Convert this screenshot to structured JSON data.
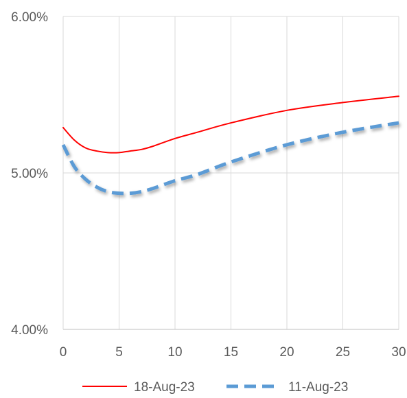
{
  "chart_data": {
    "type": "line",
    "title": "",
    "xlabel": "",
    "ylabel": "",
    "xlim": [
      0,
      30
    ],
    "ylim": [
      4.0,
      6.0
    ],
    "x_ticks": [
      "0",
      "5",
      "10",
      "15",
      "20",
      "25",
      "30"
    ],
    "y_ticks": [
      "4.00%",
      "5.00%",
      "6.00%"
    ],
    "grid": "vertical",
    "legend_position": "bottom",
    "series": [
      {
        "name": "18-Aug-23",
        "color": "#ff0000",
        "style": "solid",
        "x": [
          0,
          1,
          2,
          3,
          4,
          5,
          6,
          7,
          8,
          10,
          12,
          15,
          20,
          25,
          30
        ],
        "y": [
          5.29,
          5.21,
          5.16,
          5.14,
          5.13,
          5.13,
          5.14,
          5.15,
          5.17,
          5.22,
          5.26,
          5.32,
          5.4,
          5.45,
          5.49
        ]
      },
      {
        "name": "11-Aug-23",
        "color": "#5b9bd5",
        "style": "dashed",
        "x": [
          0,
          1,
          2,
          3,
          4,
          5,
          6,
          7,
          8,
          10,
          12,
          15,
          20,
          25,
          30
        ],
        "y": [
          5.18,
          5.04,
          4.96,
          4.91,
          4.88,
          4.87,
          4.87,
          4.88,
          4.9,
          4.95,
          4.99,
          5.07,
          5.18,
          5.26,
          5.32
        ]
      }
    ]
  }
}
